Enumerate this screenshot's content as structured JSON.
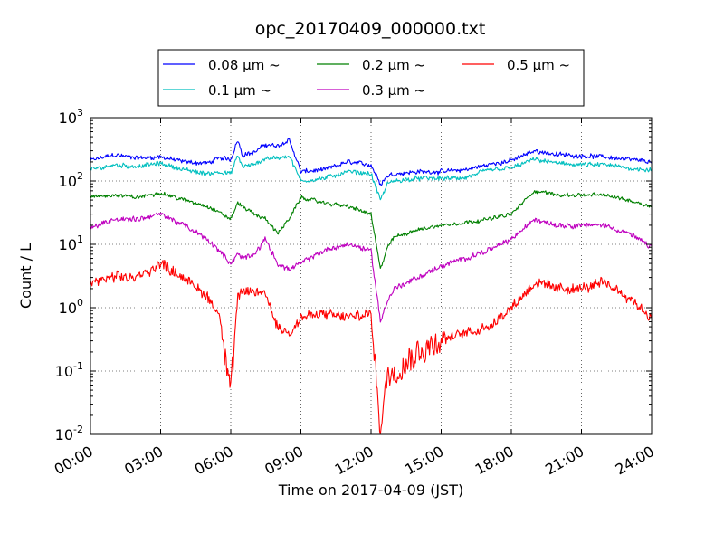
{
  "chart_data": {
    "type": "line",
    "title": "opc_20170409_000000.txt",
    "xlabel": "Time on 2017-04-09 (JST)",
    "ylabel": "Count / L",
    "y_scale": "log",
    "ylim": [
      0.01,
      1000
    ],
    "xlim_hours": [
      0,
      24
    ],
    "x_tick_labels": [
      "00:00",
      "03:00",
      "06:00",
      "09:00",
      "12:00",
      "15:00",
      "18:00",
      "21:00",
      "24:00"
    ],
    "y_tick_labels": [
      {
        "base": "10",
        "exp": "-2"
      },
      {
        "base": "10",
        "exp": "-1"
      },
      {
        "base": "10",
        "exp": "0"
      },
      {
        "base": "10",
        "exp": "1"
      },
      {
        "base": "10",
        "exp": "2"
      },
      {
        "base": "10",
        "exp": "3"
      }
    ],
    "grid": true,
    "legend_position": "top, outside plot",
    "x_hours": [
      0,
      1,
      2,
      3,
      4,
      5,
      5.5,
      6,
      6.3,
      6.5,
      7,
      7.5,
      8,
      8.5,
      9,
      10,
      11,
      12,
      12.4,
      12.7,
      13,
      14,
      15,
      16,
      17,
      18,
      19,
      20,
      21,
      22,
      23,
      24
    ],
    "series": [
      {
        "name": "0.08 μm ~",
        "color": "#0000ff",
        "values": [
          210,
          260,
          230,
          240,
          200,
          190,
          230,
          220,
          450,
          260,
          280,
          380,
          350,
          450,
          140,
          150,
          200,
          180,
          90,
          120,
          130,
          140,
          140,
          150,
          180,
          210,
          300,
          260,
          250,
          240,
          220,
          200
        ]
      },
      {
        "name": "0.1 μm ~",
        "color": "#00bfbf",
        "values": [
          150,
          180,
          170,
          190,
          150,
          130,
          140,
          130,
          250,
          170,
          180,
          230,
          230,
          250,
          100,
          110,
          140,
          130,
          50,
          90,
          100,
          110,
          110,
          110,
          150,
          160,
          220,
          190,
          180,
          180,
          160,
          150
        ]
      },
      {
        "name": "0.2 μm ~",
        "color": "#008000",
        "values": [
          55,
          60,
          55,
          65,
          50,
          40,
          32,
          25,
          45,
          40,
          30,
          25,
          15,
          25,
          55,
          45,
          40,
          30,
          4,
          9,
          13,
          17,
          20,
          22,
          25,
          30,
          70,
          60,
          60,
          60,
          50,
          40
        ]
      },
      {
        "name": "0.3 μm ~",
        "color": "#bf00bf",
        "values": [
          18,
          25,
          25,
          30,
          20,
          12,
          8,
          5,
          7,
          6,
          7,
          12,
          5,
          4,
          5,
          8,
          10,
          8,
          0.6,
          1.3,
          2,
          3,
          4.5,
          6,
          8,
          12,
          25,
          20,
          20,
          20,
          15,
          9
        ]
      },
      {
        "name": "0.5 μm ~",
        "color": "#ff0000",
        "values": [
          2.5,
          3,
          3,
          5,
          3,
          1.5,
          0.8,
          0.05,
          1.5,
          1.7,
          1.8,
          1.6,
          0.5,
          0.4,
          0.7,
          0.8,
          0.7,
          0.8,
          0.012,
          0.09,
          0.1,
          0.2,
          0.3,
          0.4,
          0.5,
          1,
          2.5,
          2,
          2,
          2.5,
          1.5,
          0.7
        ]
      }
    ]
  }
}
